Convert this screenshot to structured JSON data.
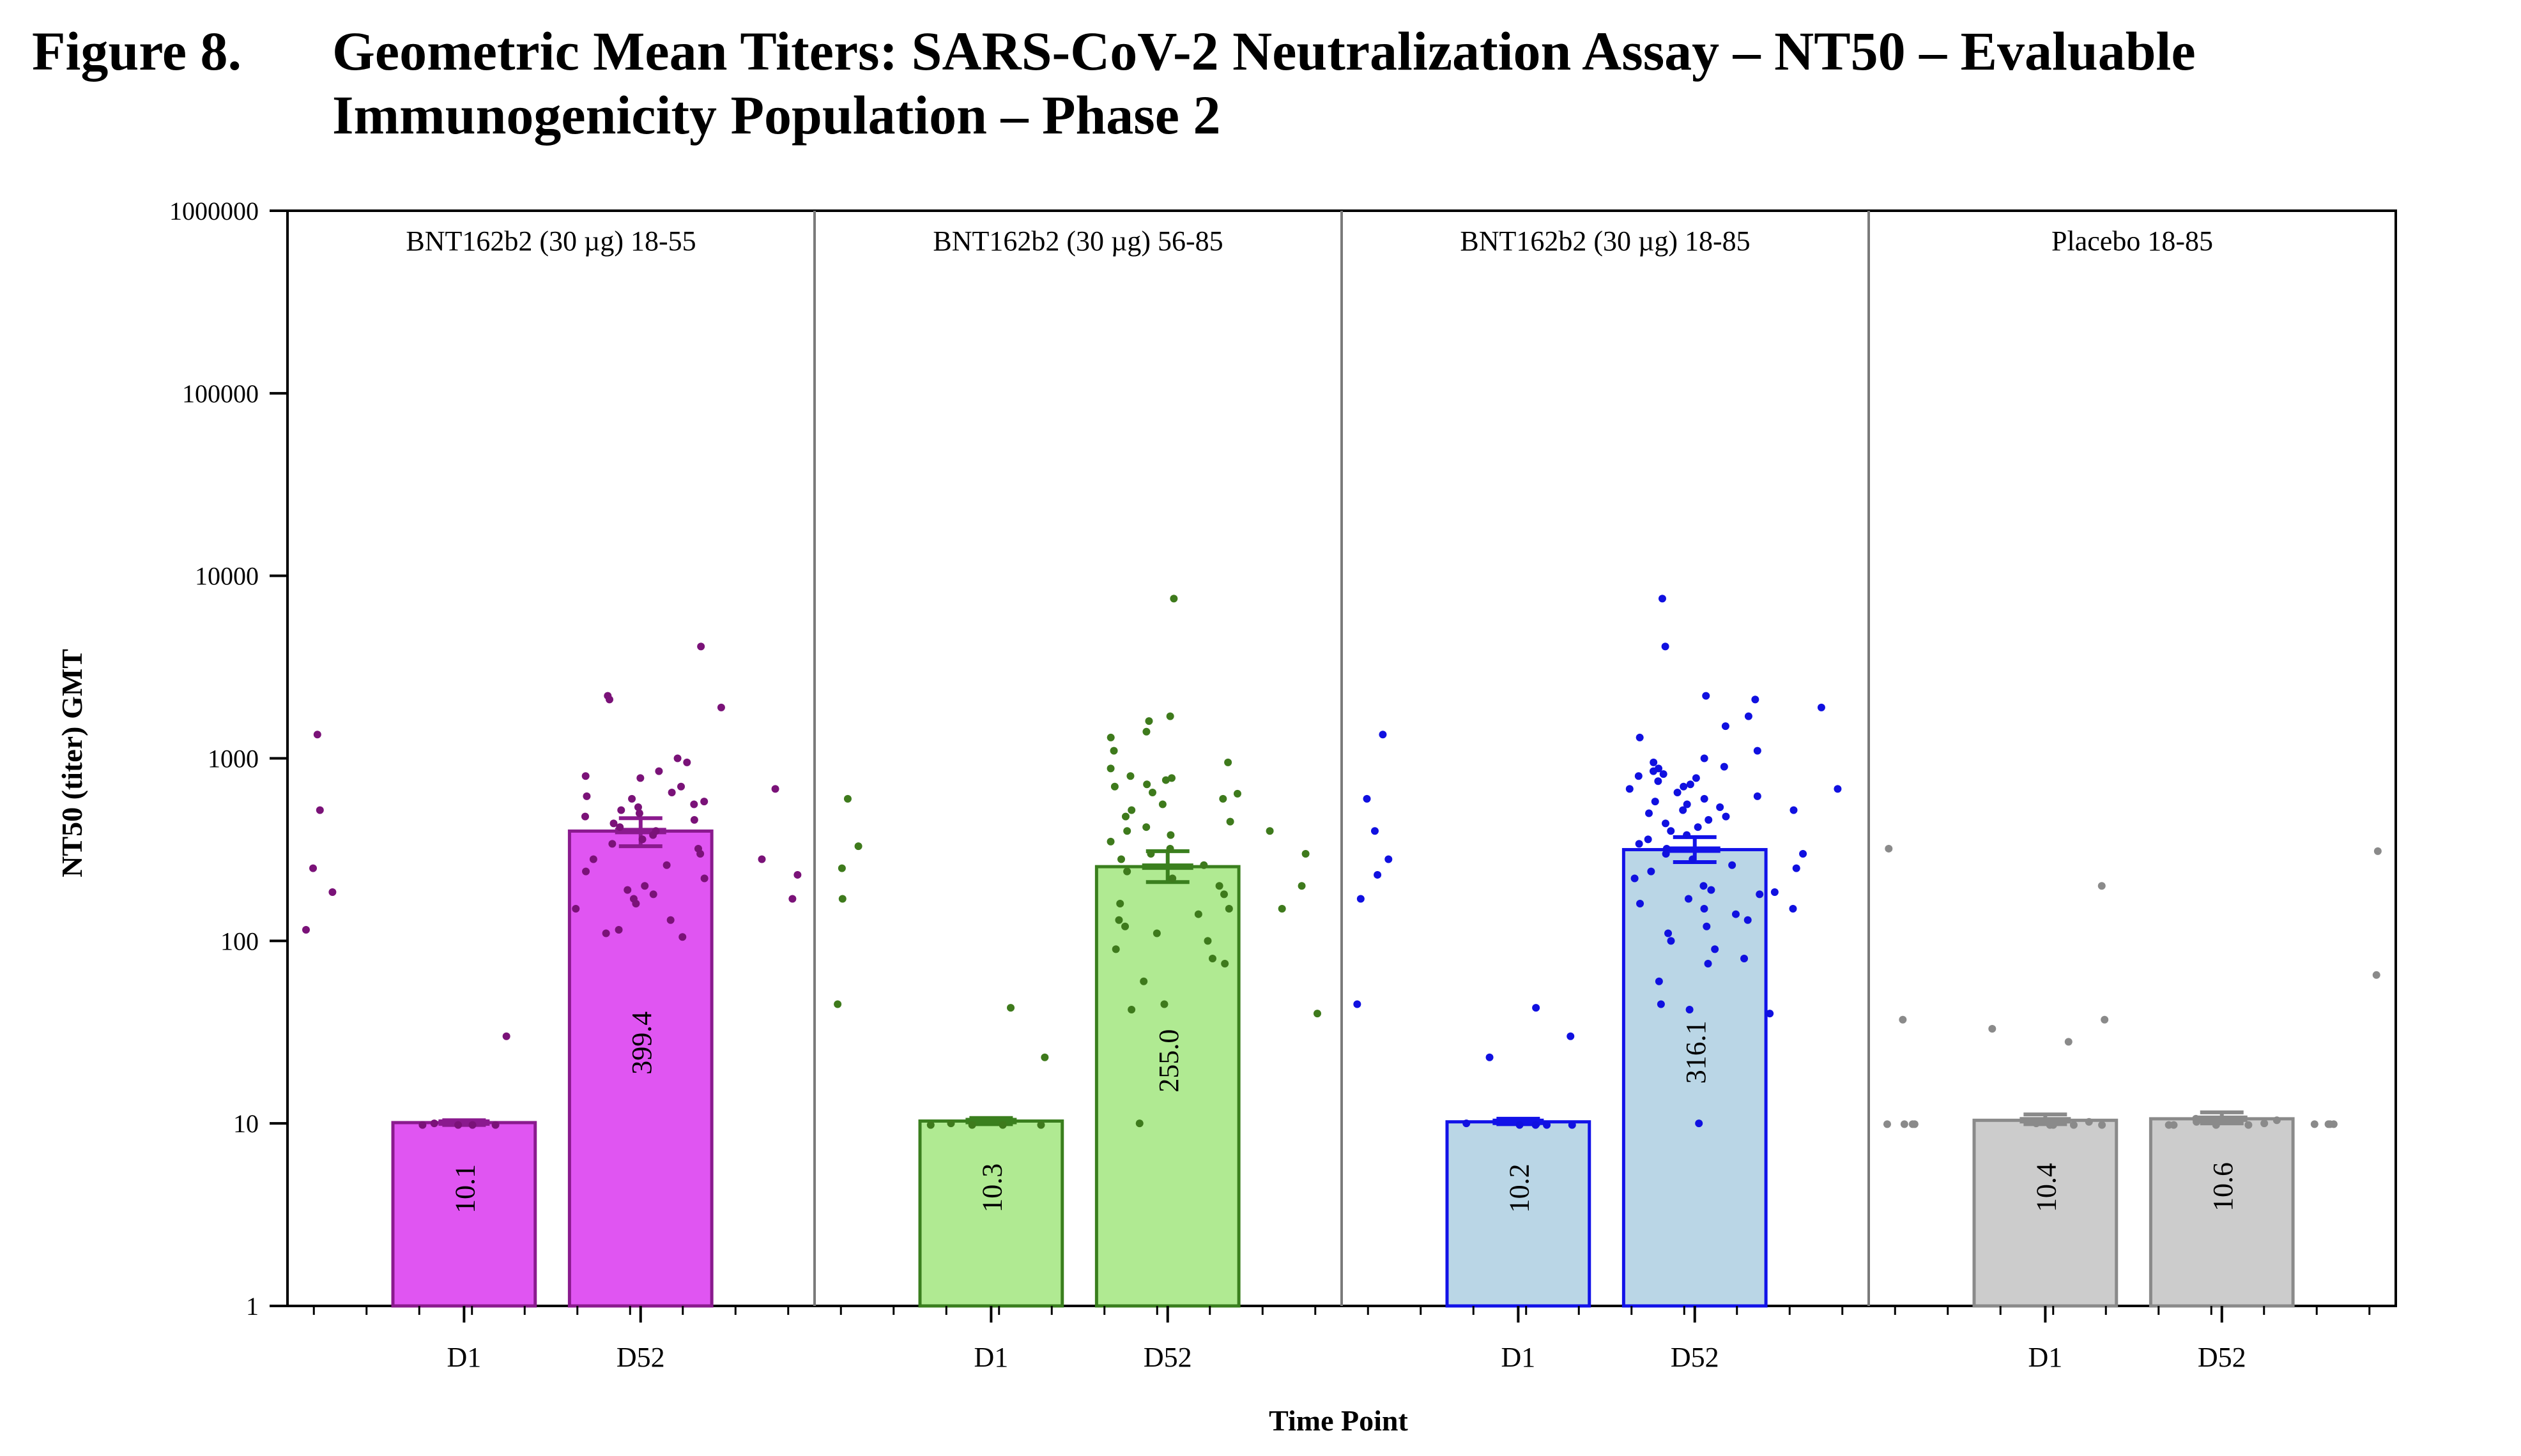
{
  "figure": {
    "number": "Figure 8.",
    "title_line1": "Geometric Mean Titers: SARS-CoV-2 Neutralization Assay – NT50 – Evaluable",
    "title_line2": "Immunogenicity Population – Phase 2"
  },
  "chart_data": {
    "type": "bar",
    "ylabel": "NT50 (titer) GMT",
    "xlabel": "Time Point",
    "y_scale": "log",
    "ylim": [
      1,
      1000000
    ],
    "y_ticks": [
      1,
      10,
      100,
      1000,
      10000,
      100000,
      1000000
    ],
    "y_tick_labels": [
      "1",
      "10",
      "100",
      "1000",
      "10000",
      "100000",
      "1000000"
    ],
    "grid": false,
    "panels": [
      {
        "label": "BNT162b2 (30 µg)  18-55",
        "color": "#e055f2",
        "edge": "#8a1a8e",
        "point_color": "#7a1278",
        "bars": [
          {
            "time": "D1",
            "gmt": 10.1,
            "label": "10.1",
            "ci": [
              9.8,
              10.4
            ],
            "points": [
              9.8,
              9.8,
              9.8,
              9.8,
              10.0,
              30
            ]
          },
          {
            "time": "D52",
            "gmt": 399.4,
            "label": "399.4",
            "ci": [
              330,
              470
            ],
            "points": [
              4100,
              2200,
              2100,
              1000,
              950,
              850,
              800,
              780,
              700,
              650,
              620,
              600,
              580,
              560,
              540,
              520,
              500,
              480,
              460,
              440,
              420,
              400,
              380,
              360,
              340,
              320,
              300,
              280,
              260,
              240,
              220,
              200,
              190,
              180,
              170,
              160,
              150,
              130,
              115,
              110,
              105
            ]
          }
        ],
        "outliers": [
          1900,
          1350,
          680,
          520,
          280,
          250,
          230,
          185,
          170,
          115
        ]
      },
      {
        "label": "BNT162b2 (30 µg)  56-85",
        "color": "#b0ea92",
        "edge": "#3a7f1e",
        "point_color": "#3e7a1c",
        "bars": [
          {
            "time": "D1",
            "gmt": 10.3,
            "label": "10.3",
            "ci": [
              9.9,
              10.7
            ],
            "points": [
              9.8,
              9.8,
              9.8,
              9.8,
              10.0,
              23,
              43
            ]
          },
          {
            "time": "D52",
            "gmt": 255.0,
            "label": "255.0",
            "ci": [
              210,
              310
            ],
            "points": [
              7500,
              1700,
              1600,
              1400,
              1300,
              1100,
              950,
              880,
              800,
              780,
              760,
              720,
              700,
              650,
              600,
              560,
              520,
              480,
              450,
              420,
              400,
              380,
              350,
              320,
              300,
              280,
              260,
              240,
              220,
              200,
              180,
              160,
              150,
              140,
              130,
              120,
              110,
              100,
              90,
              80,
              75,
              60,
              45,
              42,
              10
            ]
          }
        ],
        "outliers": [
          640,
          600,
          400,
          330,
          300,
          250,
          200,
          170,
          150,
          45,
          40
        ]
      },
      {
        "label": "BNT162b2 (30 µg)  18-85",
        "color": "#bad6e6",
        "edge": "#1212e8",
        "point_color": "#1010e0",
        "bars": [
          {
            "time": "D1",
            "gmt": 10.2,
            "label": "10.2",
            "ci": [
              9.9,
              10.6
            ],
            "points": [
              9.8,
              9.8,
              9.8,
              9.8,
              10.0,
              23,
              30,
              43
            ]
          },
          {
            "time": "D52",
            "gmt": 316.1,
            "label": "316.1",
            "ci": [
              270,
              370
            ],
            "points": [
              7500,
              4100,
              2200,
              2100,
              1700,
              1500,
              1300,
              1100,
              1000,
              950,
              900,
              880,
              850,
              820,
              800,
              780,
              750,
              720,
              700,
              680,
              650,
              620,
              600,
              580,
              560,
              540,
              520,
              500,
              480,
              460,
              440,
              420,
              400,
              380,
              360,
              340,
              320,
              300,
              280,
              260,
              240,
              220,
              200,
              190,
              180,
              170,
              160,
              150,
              140,
              130,
              120,
              110,
              100,
              90,
              80,
              75,
              60,
              45,
              42,
              10
            ]
          }
        ],
        "outliers": [
          1900,
          1350,
          680,
          600,
          520,
          400,
          300,
          280,
          250,
          230,
          185,
          170,
          150,
          45,
          40
        ]
      },
      {
        "label": "Placebo  18-85",
        "color": "#cccccc",
        "edge": "#8a8a8a",
        "point_color": "#8a8a8a",
        "bars": [
          {
            "time": "D1",
            "gmt": 10.4,
            "label": "10.4",
            "ci": [
              9.9,
              11.2
            ],
            "points": [
              9.8,
              9.8,
              9.8,
              9.8,
              10.0,
              10.2,
              28,
              33,
              37,
              200
            ]
          },
          {
            "time": "D52",
            "gmt": 10.6,
            "label": "10.6",
            "ci": [
              10.0,
              11.5
            ],
            "points": [
              9.8,
              9.8,
              9.8,
              9.8,
              10.0,
              10.2,
              10.4,
              10.6
            ]
          }
        ],
        "outliers": [
          310,
          320,
          65,
          37,
          9.9,
          9.9,
          9.9,
          9.9,
          9.9,
          9.9,
          9.9,
          9.9
        ]
      }
    ]
  }
}
